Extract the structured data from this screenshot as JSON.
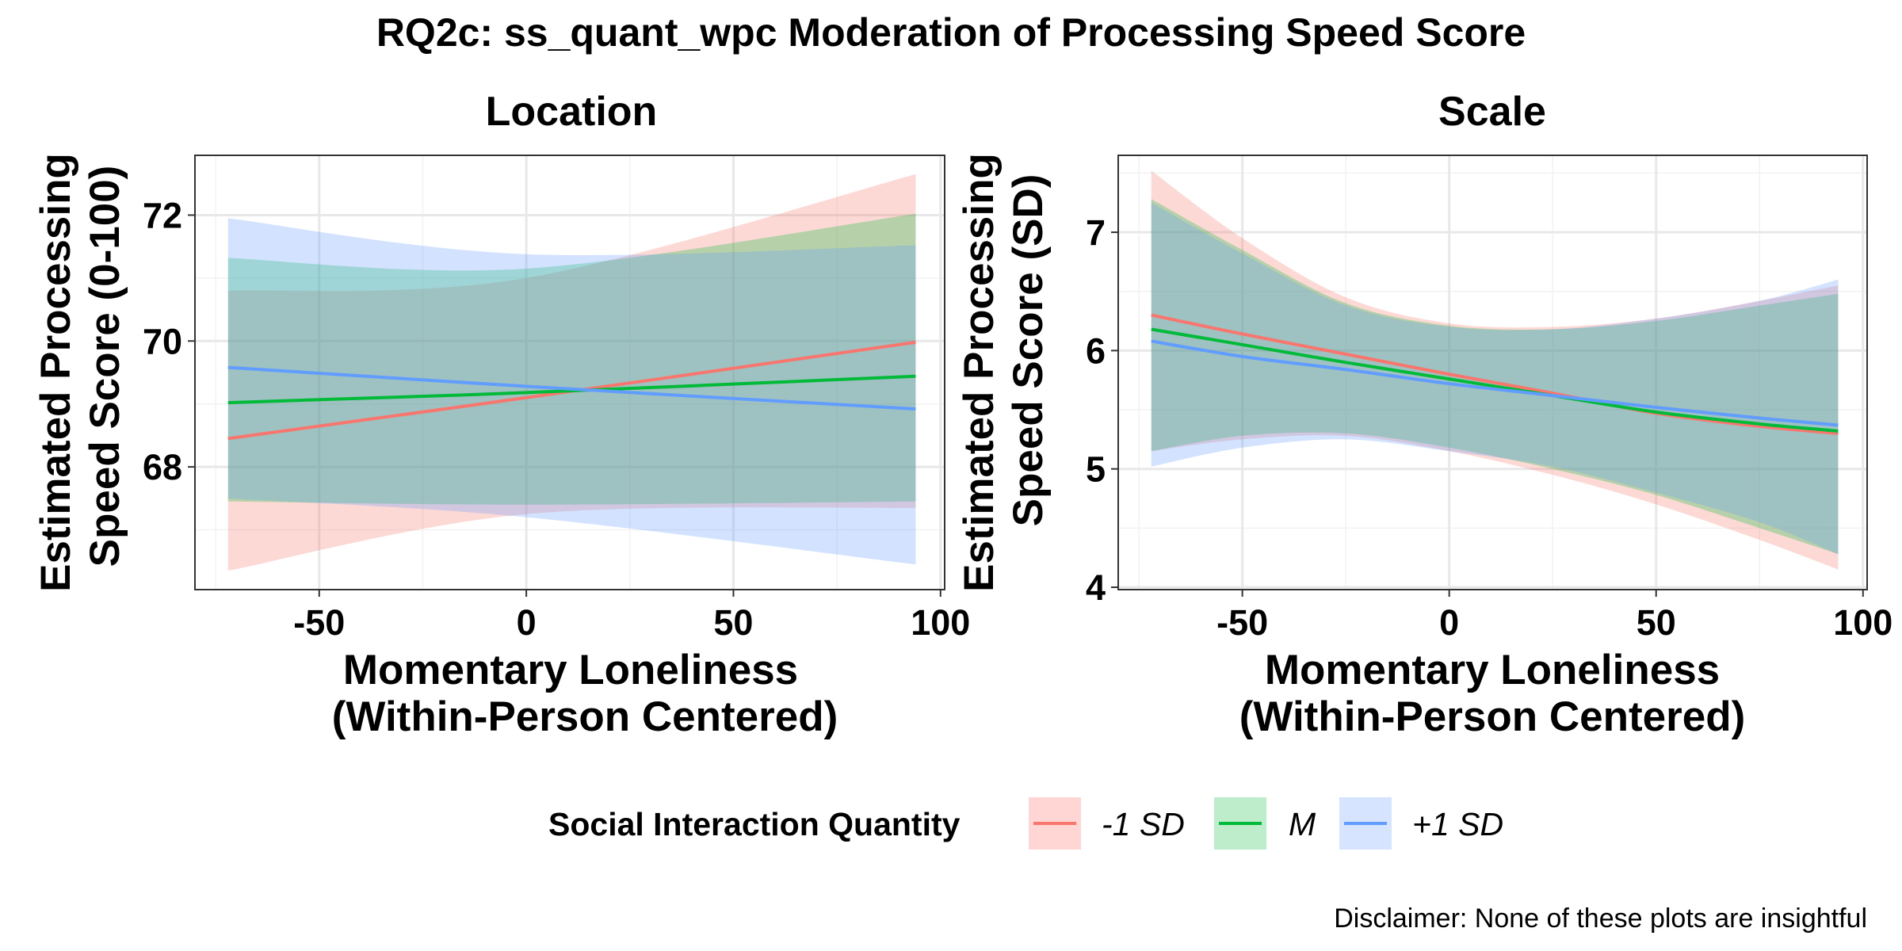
{
  "title": "RQ2c: ss_quant_wpc Moderation of Processing Speed Score",
  "caption": "Disclaimer: None of these plots are insightful",
  "legend": {
    "title": "Social Interaction Quantity",
    "position": "bottom",
    "items": [
      {
        "label": "-1 SD",
        "line_color": "#F8766D",
        "fill_color": "#FFD6D3"
      },
      {
        "label": "M",
        "line_color": "#00BA38",
        "fill_color": "#BDEDCB"
      },
      {
        "label": "+1 SD",
        "line_color": "#619CFF",
        "fill_color": "#D6E4FF"
      }
    ]
  },
  "chart_data": [
    {
      "type": "line",
      "panel": "Location",
      "xlabel": [
        "Momentary Loneliness",
        "(Within-Person Centered)"
      ],
      "ylabel": [
        "Estimated Processing",
        "Speed Score (0-100)"
      ],
      "xlim": [
        -80,
        101
      ],
      "ylim": [
        66.05,
        72.95
      ],
      "xticks": [
        -50,
        0,
        50,
        100
      ],
      "xtick_labels": [
        "-50",
        "0",
        "50",
        "100"
      ],
      "yticks": [
        68,
        70,
        72
      ],
      "ytick_labels": [
        "68",
        "70",
        "72"
      ],
      "grid": true,
      "x": [
        -72,
        0,
        94
      ],
      "series": [
        {
          "name": "-1 SD",
          "values": [
            68.45,
            69.1,
            69.98
          ],
          "lower": [
            66.35,
            67.25,
            67.35
          ],
          "upper": [
            70.8,
            71.0,
            72.65
          ]
        },
        {
          "name": "M",
          "values": [
            69.02,
            69.18,
            69.44
          ],
          "lower": [
            67.45,
            67.4,
            67.45
          ],
          "upper": [
            71.32,
            71.15,
            72.02
          ]
        },
        {
          "name": "+1 SD",
          "values": [
            69.58,
            69.28,
            68.92
          ],
          "lower": [
            67.5,
            67.2,
            66.45
          ],
          "upper": [
            71.95,
            71.38,
            71.52
          ]
        }
      ]
    },
    {
      "type": "line",
      "panel": "Scale",
      "xlabel": [
        "Momentary Loneliness",
        "(Within-Person Centered)"
      ],
      "ylabel": [
        "Estimated Processing",
        "Speed Score (SD)"
      ],
      "xlim": [
        -80,
        101
      ],
      "ylim": [
        3.98,
        7.65
      ],
      "xticks": [
        -50,
        0,
        50,
        100
      ],
      "xtick_labels": [
        "-50",
        "0",
        "50",
        "100"
      ],
      "yticks": [
        4,
        5,
        6,
        7
      ],
      "ytick_labels": [
        "4",
        "5",
        "6",
        "7"
      ],
      "grid": true,
      "x": [
        -72,
        -50,
        -25,
        0,
        25,
        50,
        75,
        94
      ],
      "series": [
        {
          "name": "-1 SD",
          "values": [
            6.3,
            6.14,
            5.97,
            5.8,
            5.64,
            5.47,
            5.36,
            5.3
          ],
          "lower": [
            5.15,
            5.25,
            5.28,
            5.15,
            4.95,
            4.7,
            4.4,
            4.15
          ],
          "upper": [
            7.52,
            6.95,
            6.45,
            6.23,
            6.2,
            6.27,
            6.42,
            6.55
          ]
        },
        {
          "name": "M",
          "values": [
            6.18,
            6.05,
            5.9,
            5.76,
            5.62,
            5.48,
            5.38,
            5.32
          ],
          "lower": [
            5.15,
            5.28,
            5.3,
            5.18,
            5.0,
            4.78,
            4.5,
            4.28
          ],
          "upper": [
            7.28,
            6.85,
            6.4,
            6.21,
            6.18,
            6.25,
            6.38,
            6.48
          ]
        },
        {
          "name": "+1 SD",
          "values": [
            6.08,
            5.95,
            5.84,
            5.72,
            5.62,
            5.52,
            5.43,
            5.37
          ],
          "lower": [
            5.02,
            5.18,
            5.25,
            5.15,
            5.02,
            4.8,
            4.55,
            4.28
          ],
          "upper": [
            7.25,
            6.82,
            6.38,
            6.2,
            6.18,
            6.27,
            6.42,
            6.6
          ]
        }
      ]
    }
  ]
}
